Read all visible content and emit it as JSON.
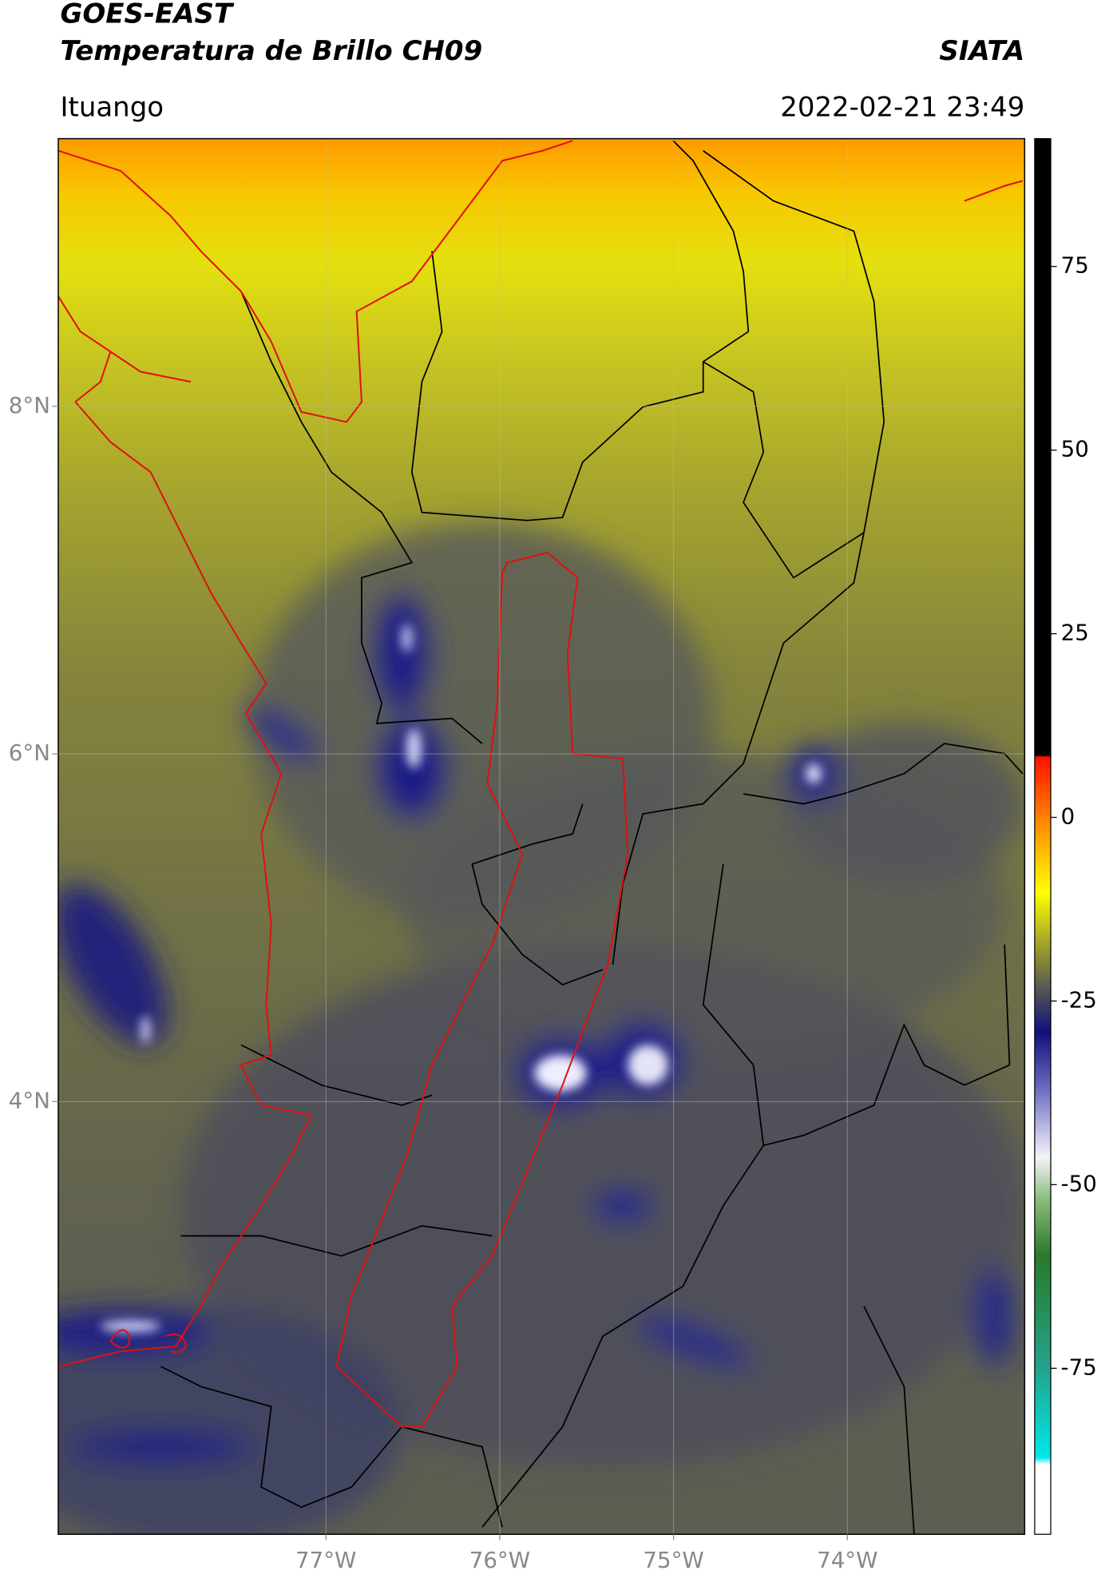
{
  "header": {
    "title": "GOES-EAST",
    "subtitle": "Temperatura de Brillo CH09",
    "source": "SIATA",
    "location": "Ituango",
    "datetime": "2022-02-21 23:49"
  },
  "map": {
    "lon_lim": [
      -78.54,
      -72.98
    ],
    "lat_lim": [
      1.51,
      9.54
    ],
    "lon_ticks": [
      {
        "value": -77,
        "label": "77°W"
      },
      {
        "value": -76,
        "label": "76°W"
      },
      {
        "value": -75,
        "label": "75°W"
      },
      {
        "value": -74,
        "label": "74°W"
      }
    ],
    "lat_ticks": [
      {
        "value": 4,
        "label": "4°N"
      },
      {
        "value": 6,
        "label": "6°N"
      },
      {
        "value": 8,
        "label": "8°N"
      }
    ]
  },
  "colorbar": {
    "lim": [
      -97.6,
      92.4
    ],
    "ticks": [
      75,
      50,
      25,
      0,
      -25,
      -50,
      -75
    ]
  }
}
